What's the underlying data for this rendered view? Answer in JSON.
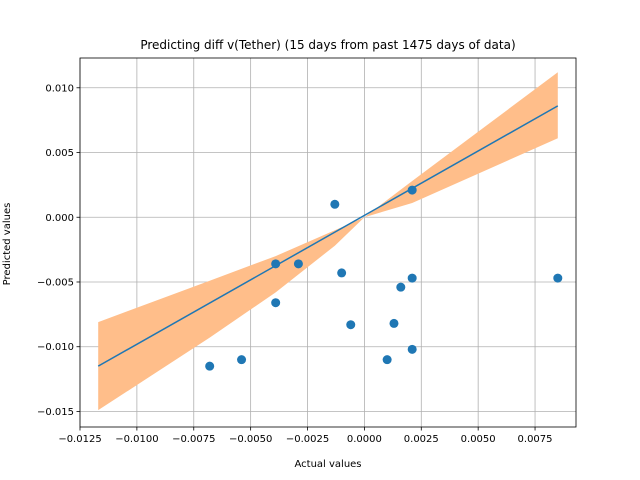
{
  "chart_data": {
    "type": "scatter",
    "title": "Predicting diff v(Tether) (15 days from past 1475 days of data)",
    "xlabel": "Actual values",
    "ylabel": "Predicted values",
    "xlim": [
      -0.0125,
      0.0093
    ],
    "ylim": [
      -0.0162,
      0.0123
    ],
    "grid": true,
    "x_ticks": [
      -0.0125,
      -0.01,
      -0.0075,
      -0.005,
      -0.0025,
      0.0,
      0.0025,
      0.005,
      0.0075
    ],
    "x_tick_labels": [
      "−0.0125",
      "−0.0100",
      "−0.0075",
      "−0.0050",
      "−0.0025",
      "0.0000",
      "0.0025",
      "0.0050",
      "0.0075"
    ],
    "y_ticks": [
      -0.015,
      -0.01,
      -0.005,
      0.0,
      0.005,
      0.01
    ],
    "y_tick_labels": [
      "−0.015",
      "−0.010",
      "−0.005",
      "0.000",
      "0.005",
      "0.010"
    ],
    "series": [
      {
        "type": "scatter",
        "x": [
          -0.0068,
          -0.0054,
          -0.0039,
          -0.0039,
          -0.0029,
          -0.0013,
          -0.001,
          -0.0006,
          0.001,
          0.0013,
          0.0016,
          0.0021,
          0.0021,
          0.0021,
          0.0085
        ],
        "y": [
          -0.0115,
          -0.011,
          -0.0036,
          -0.0066,
          -0.0036,
          0.001,
          -0.0043,
          -0.0083,
          -0.011,
          -0.0082,
          -0.0054,
          0.0021,
          -0.0047,
          -0.0102,
          -0.0047
        ]
      },
      {
        "type": "line",
        "x": [
          -0.0117,
          0.0085
        ],
        "y": [
          -0.0115,
          0.0086
        ]
      },
      {
        "type": "area",
        "x": [
          -0.0117,
          -0.0068,
          -0.0039,
          -0.0013,
          0.0,
          0.0021,
          0.0085
        ],
        "lower": [
          -0.0149,
          -0.0093,
          -0.0058,
          -0.0022,
          0.0,
          0.0011,
          0.0061
        ],
        "upper": [
          -0.0081,
          -0.0049,
          -0.003,
          -0.001,
          0.0,
          0.0028,
          0.0112
        ]
      }
    ],
    "colors": {
      "points": "#1f77b4",
      "line": "#1f77b4",
      "band": "#ffbe8a",
      "grid": "#b0b0b0"
    }
  }
}
